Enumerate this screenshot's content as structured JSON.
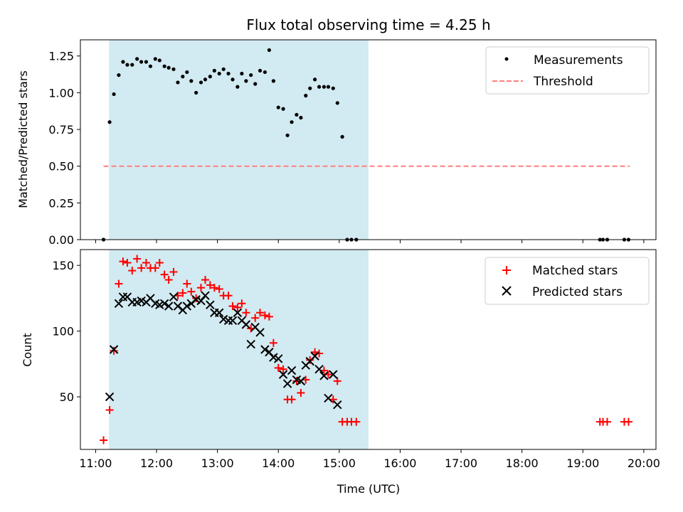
{
  "chart_data": [
    {
      "type": "scatter",
      "title": "Flux total observing time = 4.25 h",
      "xlabel": "",
      "ylabel": "Matched/Predicted stars",
      "xlim": [
        10.75,
        20.2
      ],
      "ylim": [
        0,
        1.36
      ],
      "yticks": [
        0,
        0.25,
        0.5,
        0.75,
        1.0,
        1.25
      ],
      "ytick_labels": [
        "0.00",
        "0.25",
        "0.50",
        "0.75",
        "1.00",
        "1.25"
      ],
      "observing_window": [
        11.22,
        15.48
      ],
      "colors": {
        "shade": "#add8e6",
        "measurement": "#000000",
        "threshold": "#ff7f7f"
      },
      "legend": {
        "position": "top-right",
        "entries": [
          "Measurements",
          "Threshold"
        ]
      },
      "threshold": {
        "name": "Threshold",
        "y": 0.5,
        "x": [
          11.13,
          19.77
        ]
      },
      "series": [
        {
          "name": "Measurements",
          "points": [
            [
              11.13,
              0.0
            ],
            [
              11.23,
              0.8
            ],
            [
              11.3,
              0.99
            ],
            [
              11.38,
              1.12
            ],
            [
              11.45,
              1.21
            ],
            [
              11.52,
              1.19
            ],
            [
              11.6,
              1.19
            ],
            [
              11.68,
              1.23
            ],
            [
              11.75,
              1.21
            ],
            [
              11.83,
              1.21
            ],
            [
              11.9,
              1.18
            ],
            [
              11.98,
              1.23
            ],
            [
              12.05,
              1.22
            ],
            [
              12.13,
              1.18
            ],
            [
              12.2,
              1.17
            ],
            [
              12.28,
              1.16
            ],
            [
              12.35,
              1.07
            ],
            [
              12.43,
              1.11
            ],
            [
              12.5,
              1.14
            ],
            [
              12.57,
              1.08
            ],
            [
              12.65,
              1.0
            ],
            [
              12.73,
              1.07
            ],
            [
              12.8,
              1.09
            ],
            [
              12.88,
              1.11
            ],
            [
              12.95,
              1.15
            ],
            [
              13.03,
              1.13
            ],
            [
              13.1,
              1.16
            ],
            [
              13.18,
              1.13
            ],
            [
              13.25,
              1.09
            ],
            [
              13.33,
              1.04
            ],
            [
              13.4,
              1.13
            ],
            [
              13.47,
              1.08
            ],
            [
              13.55,
              1.12
            ],
            [
              13.62,
              1.06
            ],
            [
              13.7,
              1.15
            ],
            [
              13.78,
              1.14
            ],
            [
              13.85,
              1.29
            ],
            [
              13.92,
              1.08
            ],
            [
              14.0,
              0.9
            ],
            [
              14.08,
              0.89
            ],
            [
              14.15,
              0.71
            ],
            [
              14.22,
              0.8
            ],
            [
              14.3,
              0.85
            ],
            [
              14.37,
              0.83
            ],
            [
              14.45,
              0.98
            ],
            [
              14.52,
              1.03
            ],
            [
              14.6,
              1.09
            ],
            [
              14.67,
              1.04
            ],
            [
              14.75,
              1.04
            ],
            [
              14.82,
              1.04
            ],
            [
              14.9,
              1.03
            ],
            [
              14.97,
              0.93
            ],
            [
              15.05,
              0.7
            ],
            [
              15.13,
              0.0
            ],
            [
              15.2,
              0.0
            ],
            [
              15.28,
              0.0
            ],
            [
              19.28,
              0.0
            ],
            [
              19.33,
              0.0
            ],
            [
              19.4,
              0.0
            ],
            [
              19.68,
              0.0
            ],
            [
              19.75,
              0.0
            ]
          ]
        }
      ]
    },
    {
      "type": "scatter",
      "title": "",
      "xlabel": "Time (UTC)",
      "ylabel": "Count",
      "xlim": [
        10.75,
        20.2
      ],
      "ylim": [
        10,
        162
      ],
      "yticks": [
        50,
        100,
        150
      ],
      "ytick_labels": [
        "50",
        "100",
        "150"
      ],
      "xticks": [
        11,
        12,
        13,
        14,
        15,
        16,
        17,
        18,
        19,
        20
      ],
      "xtick_labels": [
        "11:00",
        "12:00",
        "13:00",
        "14:00",
        "15:00",
        "16:00",
        "17:00",
        "18:00",
        "19:00",
        "20:00"
      ],
      "observing_window": [
        11.22,
        15.48
      ],
      "colors": {
        "shade": "#add8e6",
        "matched": "#ff0000",
        "predicted": "#000000"
      },
      "legend": {
        "position": "top-right",
        "entries": [
          "Matched stars",
          "Predicted stars"
        ]
      },
      "series": [
        {
          "name": "Matched stars",
          "marker": "plus",
          "points": [
            [
              11.13,
              17
            ],
            [
              11.23,
              40
            ],
            [
              11.3,
              85
            ],
            [
              11.38,
              136
            ],
            [
              11.45,
              153
            ],
            [
              11.52,
              152
            ],
            [
              11.6,
              146
            ],
            [
              11.68,
              155
            ],
            [
              11.75,
              148
            ],
            [
              11.83,
              152
            ],
            [
              11.9,
              148
            ],
            [
              11.98,
              148
            ],
            [
              12.05,
              152
            ],
            [
              12.13,
              143
            ],
            [
              12.2,
              139
            ],
            [
              12.28,
              145
            ],
            [
              12.35,
              127
            ],
            [
              12.43,
              129
            ],
            [
              12.5,
              136
            ],
            [
              12.57,
              130
            ],
            [
              12.65,
              125
            ],
            [
              12.73,
              133
            ],
            [
              12.8,
              139
            ],
            [
              12.88,
              135
            ],
            [
              12.95,
              133
            ],
            [
              13.03,
              132
            ],
            [
              13.1,
              127
            ],
            [
              13.18,
              127
            ],
            [
              13.25,
              119
            ],
            [
              13.33,
              118
            ],
            [
              13.4,
              121
            ],
            [
              13.47,
              114
            ],
            [
              13.55,
              102
            ],
            [
              13.62,
              110
            ],
            [
              13.7,
              114
            ],
            [
              13.78,
              112
            ],
            [
              13.85,
              111
            ],
            [
              13.92,
              91
            ],
            [
              14.0,
              72
            ],
            [
              14.08,
              71
            ],
            [
              14.15,
              48
            ],
            [
              14.22,
              48
            ],
            [
              14.3,
              62
            ],
            [
              14.37,
              53
            ],
            [
              14.45,
              63
            ],
            [
              14.52,
              78
            ],
            [
              14.6,
              84
            ],
            [
              14.67,
              83
            ],
            [
              14.75,
              70
            ],
            [
              14.82,
              67
            ],
            [
              14.9,
              48
            ],
            [
              14.97,
              62
            ],
            [
              15.05,
              31
            ],
            [
              15.13,
              31
            ],
            [
              15.2,
              31
            ],
            [
              15.28,
              31
            ],
            [
              19.28,
              31
            ],
            [
              19.33,
              31
            ],
            [
              19.4,
              31
            ],
            [
              19.68,
              31
            ],
            [
              19.75,
              31
            ]
          ]
        },
        {
          "name": "Predicted stars",
          "marker": "cross",
          "points": [
            [
              11.23,
              50
            ],
            [
              11.3,
              86
            ],
            [
              11.38,
              121
            ],
            [
              11.45,
              126
            ],
            [
              11.52,
              126
            ],
            [
              11.6,
              122
            ],
            [
              11.68,
              122
            ],
            [
              11.75,
              123
            ],
            [
              11.83,
              122
            ],
            [
              11.9,
              125
            ],
            [
              11.98,
              121
            ],
            [
              12.05,
              120
            ],
            [
              12.13,
              121
            ],
            [
              12.2,
              119
            ],
            [
              12.28,
              126
            ],
            [
              12.35,
              119
            ],
            [
              12.43,
              116
            ],
            [
              12.5,
              119
            ],
            [
              12.57,
              121
            ],
            [
              12.65,
              124
            ],
            [
              12.73,
              123
            ],
            [
              12.8,
              127
            ],
            [
              12.88,
              120
            ],
            [
              12.95,
              114
            ],
            [
              13.03,
              114
            ],
            [
              13.1,
              109
            ],
            [
              13.18,
              108
            ],
            [
              13.25,
              108
            ],
            [
              13.33,
              114
            ],
            [
              13.4,
              108
            ],
            [
              13.47,
              105
            ],
            [
              13.55,
              90
            ],
            [
              13.62,
              103
            ],
            [
              13.7,
              99
            ],
            [
              13.78,
              86
            ],
            [
              13.85,
              84
            ],
            [
              13.92,
              80
            ],
            [
              14.0,
              79
            ],
            [
              14.08,
              67
            ],
            [
              14.15,
              60
            ],
            [
              14.22,
              70
            ],
            [
              14.3,
              63
            ],
            [
              14.37,
              62
            ],
            [
              14.45,
              74
            ],
            [
              14.52,
              77
            ],
            [
              14.6,
              81
            ],
            [
              14.67,
              71
            ],
            [
              14.75,
              66
            ],
            [
              14.82,
              49
            ],
            [
              14.9,
              67
            ],
            [
              14.97,
              44
            ]
          ]
        }
      ]
    }
  ]
}
